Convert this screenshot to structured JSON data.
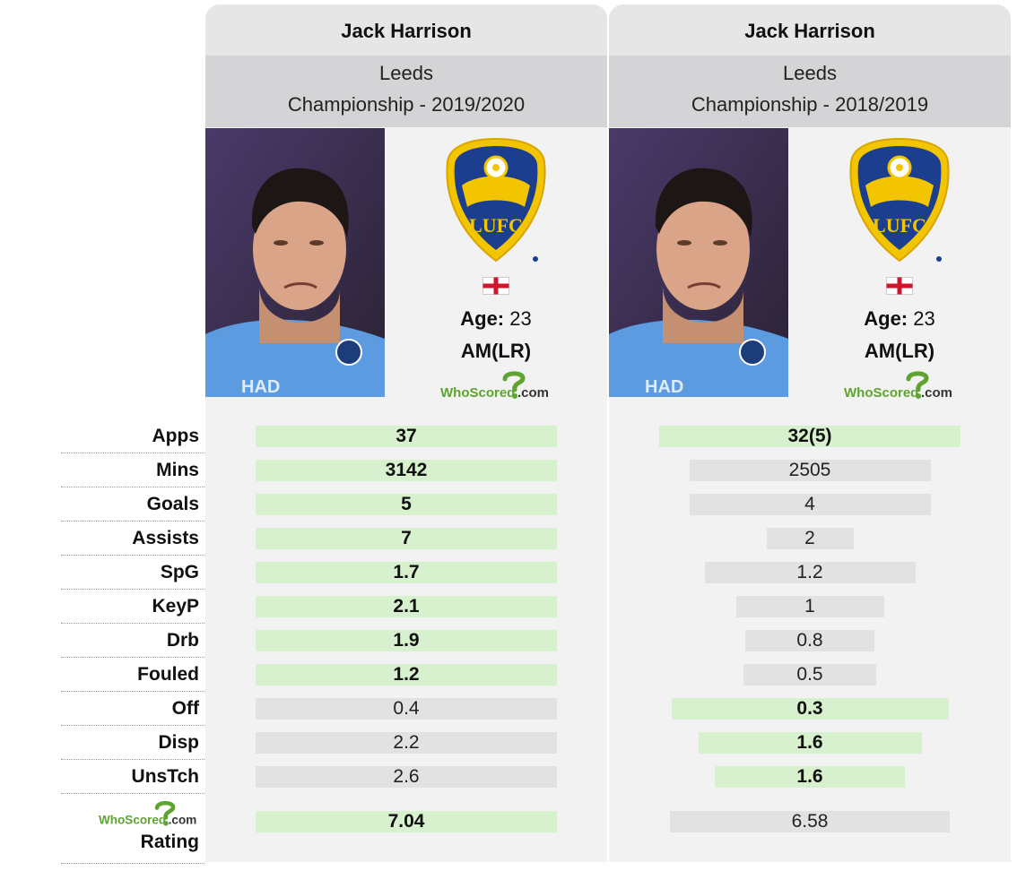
{
  "brand": {
    "logo_text": "WhoScored",
    "logo_suffix": ".com",
    "logo_color": "#5fa431"
  },
  "colors": {
    "header_bg": "#e6e6e6",
    "team_bg": "#d4d4d6",
    "column_bg": "#f2f2f2",
    "winner_bar": "#d7f0cd",
    "other_bar": "#e2e2e2"
  },
  "labels": [
    "Apps",
    "Mins",
    "Goals",
    "Assists",
    "SpG",
    "KeyP",
    "Drb",
    "Fouled",
    "Off",
    "Disp",
    "UnsTch"
  ],
  "rating_label": "Rating",
  "players": [
    {
      "name": "Jack Harrison",
      "team": "Leeds",
      "competition": "Championship - 2019/2020",
      "age_label": "Age:",
      "age": "23",
      "position": "AM(LR)",
      "flag": "england-flag-icon",
      "crest": "leeds-crest-icon",
      "stats": [
        {
          "value": "37",
          "winner": true,
          "bar": 1.0
        },
        {
          "value": "3142",
          "winner": true,
          "bar": 1.0
        },
        {
          "value": "5",
          "winner": true,
          "bar": 1.0
        },
        {
          "value": "7",
          "winner": true,
          "bar": 1.0
        },
        {
          "value": "1.7",
          "winner": true,
          "bar": 1.0
        },
        {
          "value": "2.1",
          "winner": true,
          "bar": 1.0
        },
        {
          "value": "1.9",
          "winner": true,
          "bar": 1.0
        },
        {
          "value": "1.2",
          "winner": true,
          "bar": 1.0
        },
        {
          "value": "0.4",
          "winner": false,
          "bar": 1.0
        },
        {
          "value": "2.2",
          "winner": false,
          "bar": 1.0
        },
        {
          "value": "2.6",
          "winner": false,
          "bar": 1.0
        }
      ],
      "rating": {
        "value": "7.04",
        "winner": true,
        "bar": 1.0
      }
    },
    {
      "name": "Jack Harrison",
      "team": "Leeds",
      "competition": "Championship - 2018/2019",
      "age_label": "Age:",
      "age": "23",
      "position": "AM(LR)",
      "flag": "england-flag-icon",
      "crest": "leeds-crest-icon",
      "stats": [
        {
          "value": "32(5)",
          "winner": true,
          "bar": 1.0
        },
        {
          "value": "2505",
          "winner": false,
          "bar": 0.8
        },
        {
          "value": "4",
          "winner": false,
          "bar": 0.8
        },
        {
          "value": "2",
          "winner": false,
          "bar": 0.29
        },
        {
          "value": "1.2",
          "winner": false,
          "bar": 0.7
        },
        {
          "value": "1",
          "winner": false,
          "bar": 0.49
        },
        {
          "value": "0.8",
          "winner": false,
          "bar": 0.43
        },
        {
          "value": "0.5",
          "winner": false,
          "bar": 0.44
        },
        {
          "value": "0.3",
          "winner": true,
          "bar": 0.92
        },
        {
          "value": "1.6",
          "winner": true,
          "bar": 0.74
        },
        {
          "value": "1.6",
          "winner": true,
          "bar": 0.63
        }
      ],
      "rating": {
        "value": "6.58",
        "winner": false,
        "bar": 0.93
      }
    }
  ]
}
